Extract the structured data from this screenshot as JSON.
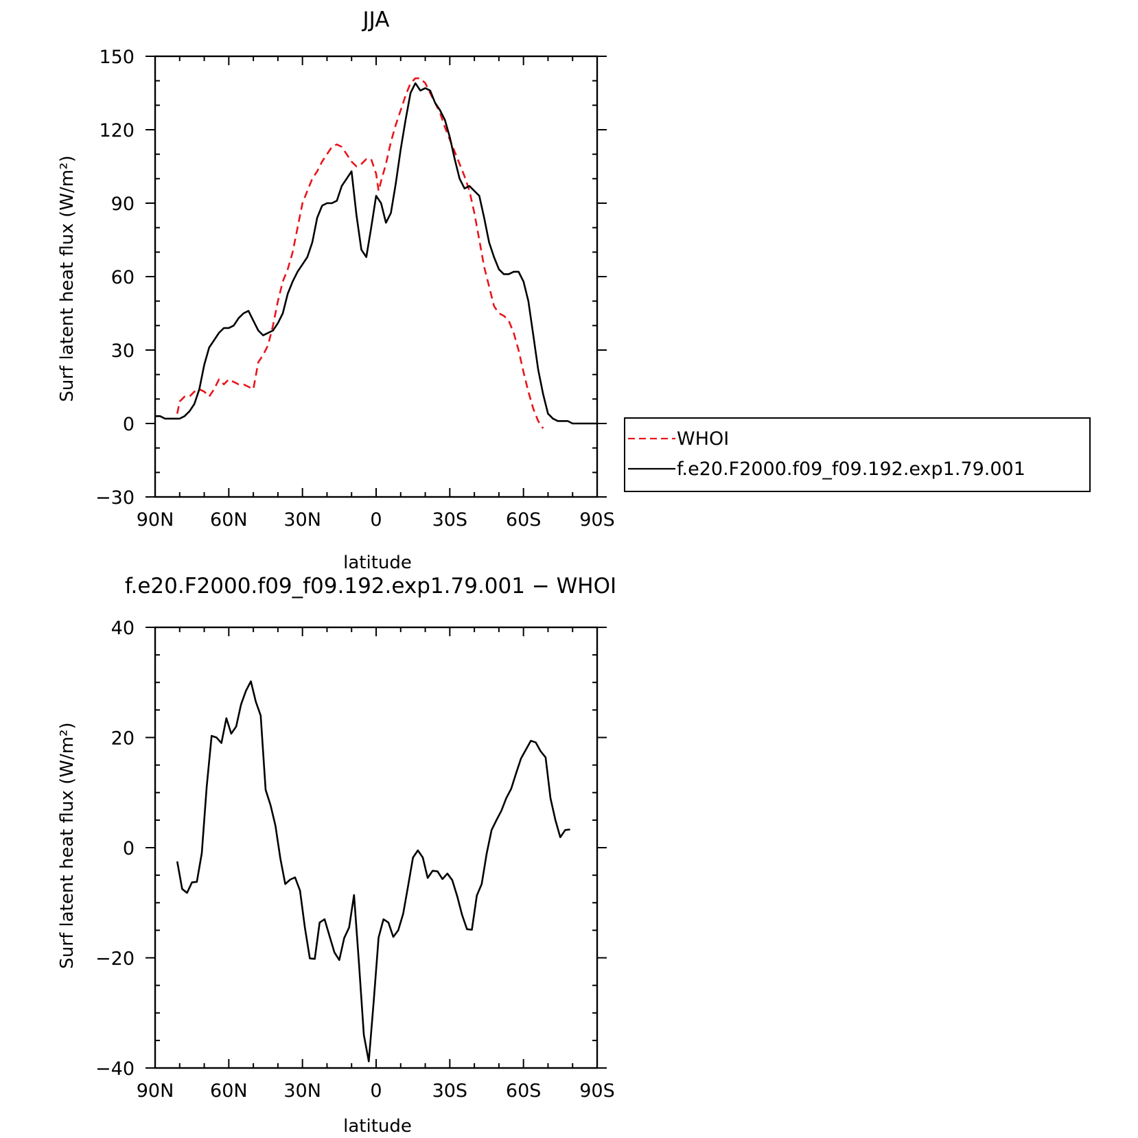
{
  "chart_data": [
    {
      "type": "line",
      "title": "JJA",
      "xlabel": "latitude",
      "ylabel": "Surf latent heat flux (W/m²)",
      "xlim": [
        90,
        -90
      ],
      "ylim": [
        -30,
        150
      ],
      "x_ticks": [
        {
          "v": 90,
          "label": "90N"
        },
        {
          "v": 60,
          "label": "60N"
        },
        {
          "v": 30,
          "label": "30N"
        },
        {
          "v": 0,
          "label": "0"
        },
        {
          "v": -30,
          "label": "30S"
        },
        {
          "v": -60,
          "label": "60S"
        },
        {
          "v": -90,
          "label": "90S"
        }
      ],
      "y_ticks": [
        {
          "v": 150,
          "label": "150"
        },
        {
          "v": 120,
          "label": "120"
        },
        {
          "v": 90,
          "label": "90"
        },
        {
          "v": 60,
          "label": "60"
        },
        {
          "v": 30,
          "label": "30"
        },
        {
          "v": 0,
          "label": "0"
        },
        {
          "v": -30,
          "label": "−30"
        }
      ],
      "legend_position": "right, outside plot",
      "series": [
        {
          "name": "WHOI",
          "color": "#e8141b",
          "style": "dashed",
          "points": [
            [
              81,
              4
            ],
            [
              80,
              9
            ],
            [
              78,
              11
            ],
            [
              76,
              11
            ],
            [
              74,
              13
            ],
            [
              72,
              14
            ],
            [
              70,
              13
            ],
            [
              68,
              11
            ],
            [
              66,
              14
            ],
            [
              64,
              18
            ],
            [
              62,
              16
            ],
            [
              60,
              18
            ],
            [
              58,
              17
            ],
            [
              56,
              16
            ],
            [
              54,
              16
            ],
            [
              52,
              15
            ],
            [
              50,
              14
            ],
            [
              48,
              25
            ],
            [
              46,
              28
            ],
            [
              44,
              32
            ],
            [
              42,
              40
            ],
            [
              40,
              50
            ],
            [
              38,
              58
            ],
            [
              36,
              63
            ],
            [
              34,
              70
            ],
            [
              32,
              80
            ],
            [
              30,
              90
            ],
            [
              28,
              95
            ],
            [
              26,
              100
            ],
            [
              24,
              103
            ],
            [
              22,
              107
            ],
            [
              20,
              110
            ],
            [
              18,
              113
            ],
            [
              16,
              114
            ],
            [
              14,
              113
            ],
            [
              12,
              110
            ],
            [
              10,
              107
            ],
            [
              8,
              105
            ],
            [
              6,
              106
            ],
            [
              4,
              108
            ],
            [
              2,
              108
            ],
            [
              0,
              102
            ],
            [
              -1,
              95
            ],
            [
              -2,
              99
            ],
            [
              -4,
              106
            ],
            [
              -6,
              115
            ],
            [
              -8,
              122
            ],
            [
              -10,
              128
            ],
            [
              -12,
              134
            ],
            [
              -14,
              139
            ],
            [
              -16,
              141
            ],
            [
              -18,
              141
            ],
            [
              -20,
              139
            ],
            [
              -22,
              135
            ],
            [
              -24,
              131
            ],
            [
              -26,
              127
            ],
            [
              -28,
              121
            ],
            [
              -30,
              116
            ],
            [
              -32,
              111
            ],
            [
              -34,
              106
            ],
            [
              -36,
              101
            ],
            [
              -38,
              95
            ],
            [
              -40,
              86
            ],
            [
              -42,
              75
            ],
            [
              -44,
              64
            ],
            [
              -46,
              56
            ],
            [
              -48,
              48
            ],
            [
              -50,
              45
            ],
            [
              -52,
              44
            ],
            [
              -54,
              42
            ],
            [
              -56,
              37
            ],
            [
              -58,
              30
            ],
            [
              -60,
              21
            ],
            [
              -62,
              13
            ],
            [
              -64,
              6
            ],
            [
              -66,
              1
            ],
            [
              -68,
              -2
            ]
          ]
        },
        {
          "name": "f.e20.F2000.f09_f09.192.exp1.79.001",
          "color": "#000000",
          "style": "solid",
          "points": [
            [
              90,
              3
            ],
            [
              88,
              3
            ],
            [
              86,
              2
            ],
            [
              84,
              2
            ],
            [
              82,
              2
            ],
            [
              80,
              2
            ],
            [
              78,
              3
            ],
            [
              76,
              5
            ],
            [
              74,
              8
            ],
            [
              72,
              14
            ],
            [
              70,
              24
            ],
            [
              68,
              31
            ],
            [
              66,
              34
            ],
            [
              64,
              37
            ],
            [
              62,
              39
            ],
            [
              60,
              39
            ],
            [
              58,
              40
            ],
            [
              56,
              43
            ],
            [
              54,
              45
            ],
            [
              52,
              46
            ],
            [
              50,
              42
            ],
            [
              48,
              38
            ],
            [
              46,
              36
            ],
            [
              44,
              37
            ],
            [
              42,
              38
            ],
            [
              40,
              41
            ],
            [
              38,
              45
            ],
            [
              36,
              53
            ],
            [
              34,
              58
            ],
            [
              32,
              62
            ],
            [
              30,
              65
            ],
            [
              28,
              68
            ],
            [
              26,
              74
            ],
            [
              24,
              84
            ],
            [
              22,
              89
            ],
            [
              20,
              90
            ],
            [
              18,
              90
            ],
            [
              16,
              91
            ],
            [
              14,
              97
            ],
            [
              12,
              100
            ],
            [
              10,
              103
            ],
            [
              8,
              85
            ],
            [
              6,
              71
            ],
            [
              4,
              68
            ],
            [
              2,
              80
            ],
            [
              0,
              93
            ],
            [
              -2,
              90
            ],
            [
              -4,
              82
            ],
            [
              -6,
              86
            ],
            [
              -8,
              98
            ],
            [
              -10,
              112
            ],
            [
              -12,
              124
            ],
            [
              -14,
              135
            ],
            [
              -16,
              139
            ],
            [
              -18,
              136
            ],
            [
              -20,
              137
            ],
            [
              -22,
              136
            ],
            [
              -24,
              131
            ],
            [
              -26,
              128
            ],
            [
              -28,
              124
            ],
            [
              -30,
              117
            ],
            [
              -32,
              108
            ],
            [
              -34,
              100
            ],
            [
              -36,
              96
            ],
            [
              -38,
              97
            ],
            [
              -40,
              95
            ],
            [
              -42,
              93
            ],
            [
              -44,
              84
            ],
            [
              -46,
              74
            ],
            [
              -48,
              68
            ],
            [
              -50,
              63
            ],
            [
              -52,
              61
            ],
            [
              -54,
              61
            ],
            [
              -56,
              62
            ],
            [
              -58,
              62
            ],
            [
              -60,
              58
            ],
            [
              -62,
              50
            ],
            [
              -64,
              36
            ],
            [
              -66,
              22
            ],
            [
              -68,
              12
            ],
            [
              -70,
              4
            ],
            [
              -72,
              2
            ],
            [
              -74,
              1
            ],
            [
              -76,
              1
            ],
            [
              -78,
              1
            ],
            [
              -80,
              0
            ],
            [
              -82,
              0
            ],
            [
              -84,
              0
            ],
            [
              -86,
              0
            ],
            [
              -88,
              0
            ],
            [
              -90,
              0
            ]
          ]
        }
      ]
    },
    {
      "type": "line",
      "title": "f.e20.F2000.f09_f09.192.exp1.79.001 − WHOI",
      "xlabel": "latitude",
      "ylabel": "Surf latent heat flux (W/m²)",
      "xlim": [
        90,
        -90
      ],
      "ylim": [
        -40,
        40
      ],
      "x_ticks": [
        {
          "v": 90,
          "label": "90N"
        },
        {
          "v": 60,
          "label": "60N"
        },
        {
          "v": 30,
          "label": "30N"
        },
        {
          "v": 0,
          "label": "0"
        },
        {
          "v": -30,
          "label": "30S"
        },
        {
          "v": -60,
          "label": "60S"
        },
        {
          "v": -90,
          "label": "90S"
        }
      ],
      "y_ticks": [
        {
          "v": 40,
          "label": "40"
        },
        {
          "v": 20,
          "label": "20"
        },
        {
          "v": 0,
          "label": "0"
        },
        {
          "v": -20,
          "label": "−20"
        },
        {
          "v": -40,
          "label": "−40"
        }
      ],
      "series": [
        {
          "color": "#000000",
          "style": "solid",
          "points": [
            [
              81,
              -2.5
            ],
            [
              79,
              -7.5
            ],
            [
              77,
              -8.2
            ],
            [
              75,
              -6.3
            ],
            [
              73,
              -6.2
            ],
            [
              71,
              -1
            ],
            [
              69,
              11
            ],
            [
              67,
              20.3
            ],
            [
              65,
              20
            ],
            [
              63,
              19
            ],
            [
              61,
              23.5
            ],
            [
              59,
              20.7
            ],
            [
              57,
              22
            ],
            [
              55,
              26
            ],
            [
              53,
              28.5
            ],
            [
              51,
              30.2
            ],
            [
              49,
              26.5
            ],
            [
              47,
              24
            ],
            [
              45,
              10.5
            ],
            [
              43,
              7.7
            ],
            [
              41,
              4
            ],
            [
              39,
              -2
            ],
            [
              37,
              -6.6
            ],
            [
              35,
              -5.8
            ],
            [
              33,
              -5.4
            ],
            [
              31,
              -7.8
            ],
            [
              29,
              -14.5
            ],
            [
              27,
              -20.1
            ],
            [
              25,
              -20.2
            ],
            [
              23,
              -13.6
            ],
            [
              21,
              -13
            ],
            [
              19,
              -16
            ],
            [
              17,
              -19
            ],
            [
              15,
              -20.4
            ],
            [
              13,
              -16.4
            ],
            [
              11,
              -14.5
            ],
            [
              9,
              -8.6
            ],
            [
              7,
              -21
            ],
            [
              5,
              -34
            ],
            [
              3,
              -38.8
            ],
            [
              1,
              -28
            ],
            [
              -1,
              -16.3
            ],
            [
              -3,
              -13
            ],
            [
              -5,
              -13.6
            ],
            [
              -7,
              -16.2
            ],
            [
              -9,
              -15
            ],
            [
              -11,
              -12
            ],
            [
              -13,
              -7
            ],
            [
              -15,
              -1.8
            ],
            [
              -17,
              -0.5
            ],
            [
              -19,
              -1.8
            ],
            [
              -21,
              -5.5
            ],
            [
              -23,
              -4.2
            ],
            [
              -25,
              -4.3
            ],
            [
              -27,
              -5.7
            ],
            [
              -29,
              -4.7
            ],
            [
              -31,
              -5.9
            ],
            [
              -33,
              -8.8
            ],
            [
              -35,
              -12.2
            ],
            [
              -37,
              -14.8
            ],
            [
              -39,
              -14.9
            ],
            [
              -41,
              -8.7
            ],
            [
              -43,
              -6.6
            ],
            [
              -45,
              -1.1
            ],
            [
              -47,
              3.2
            ],
            [
              -49,
              5
            ],
            [
              -51,
              6.7
            ],
            [
              -53,
              9
            ],
            [
              -55,
              10.7
            ],
            [
              -57,
              13.5
            ],
            [
              -59,
              16.2
            ],
            [
              -61,
              17.8
            ],
            [
              -63,
              19.4
            ],
            [
              -65,
              19.1
            ],
            [
              -67,
              17.5
            ],
            [
              -69,
              16.4
            ],
            [
              -71,
              9
            ],
            [
              -73,
              5
            ],
            [
              -75,
              1.9
            ],
            [
              -77,
              3.2
            ],
            [
              -79,
              3.3
            ]
          ]
        }
      ]
    }
  ]
}
